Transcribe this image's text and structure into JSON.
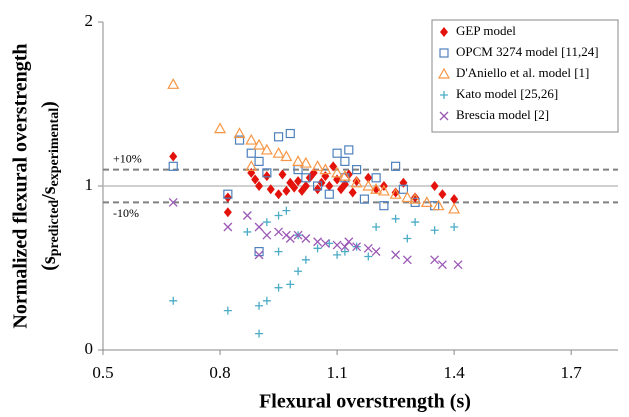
{
  "chart_data": {
    "type": "scatter",
    "x_label": "Flexural overstrength (s)",
    "y_label": "Normalized flexural overstrength",
    "y_label_2": [
      "(s",
      "predicted",
      "/s",
      "experimental",
      ")"
    ],
    "xlim": [
      0.5,
      1.82
    ],
    "ylim": [
      0,
      2
    ],
    "xticks": [
      0.5,
      0.8,
      1.1,
      1.4,
      1.7
    ],
    "yticks": [
      0,
      1,
      2
    ],
    "legend": "top-right",
    "reference_lines": [
      {
        "value": 1.1,
        "label": "+10%",
        "style": "dashed",
        "color": "#808080"
      },
      {
        "value": 1,
        "style": "solid",
        "color": "#c0c0c0"
      },
      {
        "value": 0.9,
        "label": "-10%",
        "style": "dashed",
        "color": "#808080"
      }
    ],
    "series": [
      {
        "name": "GEP model",
        "color": "#e3120b",
        "marker": "diamond",
        "x": [
          0.68,
          0.82,
          0.82,
          0.88,
          0.89,
          0.9,
          0.92,
          0.93,
          0.95,
          0.96,
          0.97,
          0.98,
          0.99,
          1.0,
          1.01,
          1.02,
          1.03,
          1.04,
          1.05,
          1.06,
          1.07,
          1.08,
          1.09,
          1.1,
          1.11,
          1.12,
          1.13,
          1.14,
          1.15,
          1.18,
          1.2,
          1.22,
          1.25,
          1.27,
          1.3,
          1.35,
          1.37,
          1.4
        ],
        "values": [
          1.18,
          0.93,
          0.84,
          1.08,
          1.04,
          1.0,
          1.06,
          0.98,
          0.95,
          1.07,
          0.97,
          1.02,
          0.99,
          1.03,
          0.97,
          1.0,
          1.05,
          1.08,
          0.98,
          1.02,
          1.06,
          1.0,
          1.12,
          1.04,
          0.98,
          1.01,
          1.07,
          0.96,
          1.03,
          1.05,
          0.98,
          1.0,
          0.96,
          1.02,
          0.93,
          1.0,
          0.95,
          0.92
        ]
      },
      {
        "name": "OPCM 3274 model [11,24]",
        "color": "#4f81bd",
        "marker": "square",
        "x": [
          0.68,
          0.82,
          0.85,
          0.88,
          0.9,
          0.92,
          0.95,
          0.98,
          1.0,
          1.02,
          1.05,
          1.08,
          1.1,
          1.12,
          1.13,
          1.15,
          1.17,
          1.2,
          1.22,
          1.25,
          1.27,
          1.3,
          1.35,
          0.9,
          1.12
        ],
        "values": [
          1.12,
          0.95,
          1.28,
          1.2,
          1.15,
          1.08,
          1.3,
          1.32,
          1.1,
          1.05,
          1.0,
          0.95,
          1.2,
          1.15,
          1.22,
          1.1,
          0.92,
          1.05,
          0.88,
          1.12,
          0.98,
          0.9,
          0.88,
          0.6,
          1.05
        ]
      },
      {
        "name": "D'Aniello et al. model [1]",
        "color": "#f79646",
        "marker": "triangle",
        "x": [
          0.68,
          0.8,
          0.85,
          0.88,
          0.9,
          0.92,
          0.95,
          0.97,
          1.0,
          1.02,
          1.05,
          1.07,
          1.1,
          1.12,
          1.15,
          1.18,
          1.2,
          1.22,
          1.25,
          1.28,
          1.3,
          1.33,
          1.36,
          1.4,
          0.88
        ],
        "values": [
          1.62,
          1.35,
          1.32,
          1.28,
          1.25,
          1.22,
          1.2,
          1.18,
          1.15,
          1.14,
          1.12,
          1.1,
          1.08,
          1.06,
          1.02,
          1.0,
          0.98,
          0.97,
          0.95,
          0.93,
          0.92,
          0.9,
          0.88,
          0.86,
          1.12
        ]
      },
      {
        "name": "Kato model [25,26]",
        "color": "#4bacc6",
        "marker": "plus",
        "x": [
          0.68,
          0.82,
          0.9,
          0.9,
          0.92,
          0.95,
          0.98,
          1.0,
          1.02,
          0.87,
          0.92,
          0.95,
          1.0,
          1.05,
          1.08,
          1.1,
          1.12,
          1.15,
          1.2,
          1.25,
          1.28,
          1.3,
          1.35,
          1.4,
          0.95,
          0.97,
          1.18
        ],
        "values": [
          0.3,
          0.24,
          0.1,
          0.27,
          0.3,
          0.38,
          0.4,
          0.48,
          0.55,
          0.72,
          0.78,
          0.82,
          0.7,
          0.62,
          0.65,
          0.58,
          0.6,
          0.63,
          0.75,
          0.8,
          0.68,
          0.78,
          0.73,
          0.75,
          0.6,
          0.85,
          0.57
        ]
      },
      {
        "name": "Brescia model [2]",
        "color": "#9b59b6",
        "marker": "x",
        "x": [
          0.68,
          0.82,
          0.87,
          0.9,
          0.9,
          0.92,
          0.95,
          0.97,
          1.0,
          1.02,
          1.05,
          1.07,
          1.1,
          1.12,
          1.15,
          1.18,
          1.2,
          1.25,
          1.28,
          1.35,
          1.37,
          1.41,
          1.13,
          0.98
        ],
        "values": [
          0.9,
          0.75,
          0.82,
          0.58,
          0.75,
          0.7,
          0.72,
          0.7,
          0.7,
          0.68,
          0.66,
          0.65,
          0.64,
          0.63,
          0.63,
          0.62,
          0.6,
          0.58,
          0.55,
          0.55,
          0.52,
          0.52,
          0.66,
          0.68
        ]
      }
    ]
  }
}
